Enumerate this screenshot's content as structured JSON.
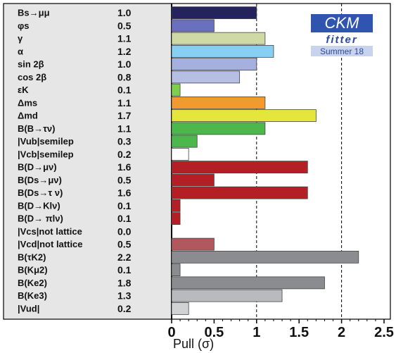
{
  "chart_data": {
    "type": "bar",
    "orientation": "horizontal",
    "xlabel": "Pull (σ)",
    "xlim": [
      0,
      2.5
    ],
    "x_ticks": [
      "0",
      "0.5",
      "1",
      "1.5",
      "2",
      "2.5"
    ],
    "reference_lines": [
      1,
      2
    ],
    "grid": false,
    "logo": {
      "title": "CKM",
      "subtitle": "fitter",
      "edition": "Summer 18"
    },
    "categories": [
      "Bs→μμ",
      "φs",
      "γ",
      "α",
      "sin 2β",
      "cos 2β",
      "εK",
      "Δms",
      "Δmd",
      "B(B→τν)",
      "|Vub|semilep",
      "|Vcb|semilep",
      "B(D→μν)",
      "B(Ds→μν)",
      "B(Ds→τ ν)",
      "B(D→Klν)",
      "B(D→ πlν)",
      "|Vcs|not lattice",
      "|Vcd|not lattice",
      "B(τK2)",
      "B(Kμ2)",
      "B(Ke2)",
      "B(Ke3)",
      "|Vud|"
    ],
    "value_labels": [
      "1.0",
      "0.5",
      "1.1",
      "1.2",
      "1.0",
      "0.8",
      "0.1",
      "1.1",
      "1.7",
      "1.1",
      "0.3",
      "0.2",
      "1.6",
      "0.5",
      "1.6",
      "0.1",
      "0.1",
      "0.0",
      "0.5",
      "2.2",
      "0.1",
      "1.8",
      "1.3",
      "0.2"
    ],
    "values": [
      1.0,
      0.5,
      1.1,
      1.2,
      1.0,
      0.8,
      0.1,
      1.1,
      1.7,
      1.1,
      0.3,
      0.2,
      1.6,
      0.5,
      1.6,
      0.1,
      0.1,
      0.0,
      0.5,
      2.2,
      0.1,
      1.8,
      1.3,
      0.2
    ],
    "colors": [
      "#25235e",
      "#6b6fbf",
      "#cfd9a5",
      "#88d0f2",
      "#a6b0de",
      "#b5bee3",
      "#7fcf4e",
      "#f39a2e",
      "#e5e63b",
      "#4cb84c",
      "#4cb84c",
      "#ffffff",
      "#b31f24",
      "#b31f24",
      "#b31f24",
      "#b31f24",
      "#b31f24",
      "#ffffff",
      "#b3575e",
      "#8a8c8f",
      "#8a8c8f",
      "#8a8c8f",
      "#b8babd",
      "#d0d2d4"
    ]
  }
}
